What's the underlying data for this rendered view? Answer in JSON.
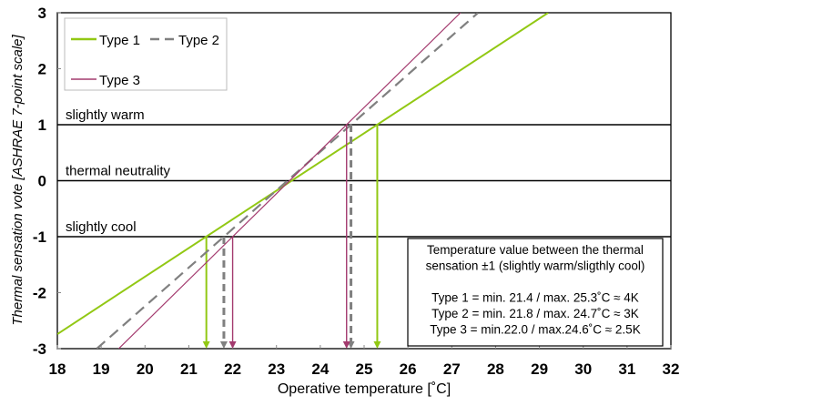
{
  "chart_data": {
    "type": "line",
    "xlabel": "Operative temperature [˚C]",
    "ylabel": "Thermal sensation vote [ASHRAE 7-point scale]",
    "xlim": [
      18,
      32
    ],
    "ylim": [
      -3,
      3
    ],
    "xticks": [
      "18",
      "19",
      "20",
      "21",
      "22",
      "23",
      "24",
      "25",
      "26",
      "27",
      "28",
      "29",
      "30",
      "31",
      "32"
    ],
    "yticks": [
      "-3",
      "-2",
      "-1",
      "0",
      "1",
      "2",
      "3"
    ],
    "grid": false,
    "legend": "top-left",
    "reference_lines": [
      {
        "y": 1,
        "label": "slightly warm"
      },
      {
        "y": 0,
        "label": "thermal neutrality"
      },
      {
        "y": -1,
        "label": "slightly cool"
      }
    ],
    "series": [
      {
        "name": "Type 1",
        "color": "#92c814",
        "style": "solid",
        "x": [
          18,
          29.2
        ],
        "y": [
          -2.74,
          3
        ],
        "min": 21.4,
        "max": 25.3
      },
      {
        "name": "Type 2",
        "color": "#808080",
        "style": "dashed",
        "x": [
          18.9,
          27.6
        ],
        "y": [
          -3,
          3
        ],
        "min": 21.8,
        "max": 24.7
      },
      {
        "name": "Type 3",
        "color": "#a33a6e",
        "style": "solid-thin",
        "x": [
          19.4,
          27.2
        ],
        "y": [
          -3,
          3
        ],
        "min": 22.0,
        "max": 24.6
      }
    ],
    "annotation": {
      "lines": [
        "Temperature value between the thermal",
        "sensation ±1 (slightly warm/sligthly cool)",
        "",
        "Type 1 = min. 21.4 / max. 25.3˚C ≈ 4K",
        "Type 2 = min. 21.8 / max. 24.7˚C ≈ 3K",
        "Type 3 = min.22.0 / max.24.6˚C ≈ 2.5K"
      ]
    }
  }
}
